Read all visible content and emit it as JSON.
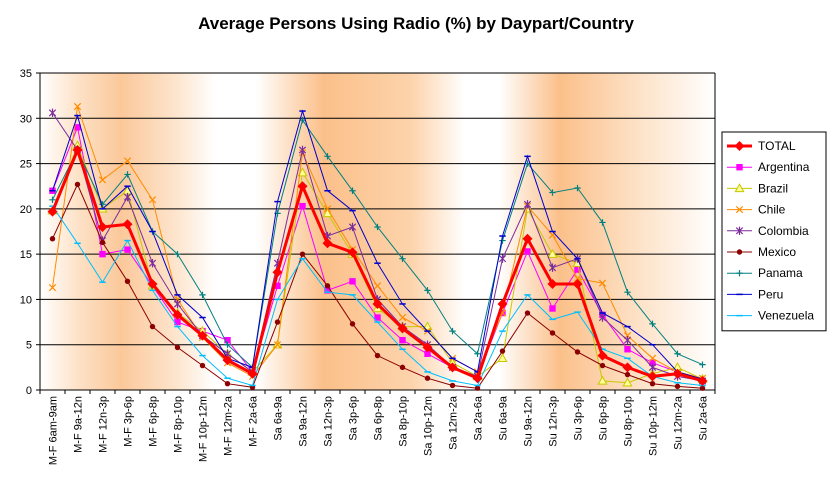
{
  "chart_data": {
    "type": "line",
    "title": "Average Persons Using Radio (%) by Daypart/Country",
    "xlabel": "",
    "ylabel": "",
    "ylim": [
      0,
      35
    ],
    "yticks": [
      0,
      5,
      10,
      15,
      20,
      25,
      30,
      35
    ],
    "grid": "horizontal",
    "legend_position": "right",
    "background": "vertical gradient: white at weekday dawn/night, orange at midday",
    "categories": [
      "M-F 6am-9am",
      "M-F 9a-12n",
      "M-F 12n-3p",
      "M-F 3p-6p",
      "M-F 6p-8p",
      "M-F 8p-10p",
      "M-F 10p-12m",
      "M-F 12m-2a",
      "M-F 2a-6a",
      "Sa 6a-9a",
      "Sa 9a-12n",
      "Sa 12n-3p",
      "Sa 3p-6p",
      "Sa 6p-8p",
      "Sa 8p-10p",
      "Sa 10p-12m",
      "Sa 12m-2a",
      "Sa 2a-6a",
      "Su 6a-9a",
      "Su 9a-12n",
      "Su 12n-3p",
      "Su 3p-6p",
      "Su 6p-8p",
      "Su 8p-10p",
      "Su 10p-12m",
      "Su 12m-2a",
      "Su 2a-6a"
    ],
    "series": [
      {
        "name": "Argentina",
        "color": "#ff00ff",
        "marker": "square",
        "values": [
          22,
          29,
          15,
          15.5,
          11.5,
          7.5,
          6.5,
          5.5,
          2,
          11.5,
          20.3,
          11,
          12,
          8,
          5.5,
          4,
          2.5,
          1.5,
          8.5,
          15.3,
          9,
          13.3,
          8.3,
          4.5,
          3,
          2,
          1
        ]
      },
      {
        "name": "Brazil",
        "color": "#c8c800",
        "marker": "triangle",
        "values": [
          19.8,
          27,
          20,
          22,
          11.5,
          8.5,
          6.5,
          4,
          2,
          5,
          24,
          19.5,
          15,
          9,
          7,
          7,
          3,
          1.5,
          3.5,
          20,
          15,
          14,
          1,
          0.8,
          1.8,
          2.5,
          1.2
        ]
      },
      {
        "name": "Chile",
        "color": "#ff8c00",
        "marker": "x",
        "values": [
          11.3,
          31.3,
          23.2,
          25.3,
          21,
          10,
          5.8,
          3,
          1.5,
          5,
          26.2,
          20,
          15.5,
          11.5,
          8,
          6.5,
          3.5,
          2,
          8.5,
          20.3,
          17.1,
          12.3,
          11.8,
          6,
          3.5,
          2,
          1.3
        ]
      },
      {
        "name": "Colombia",
        "color": "#7b2d9b",
        "marker": "star",
        "values": [
          30.6,
          26.5,
          16.5,
          21.3,
          14,
          9.5,
          6,
          4,
          2,
          14,
          26.5,
          17,
          18,
          10,
          7,
          5,
          2.5,
          1.5,
          14.5,
          20.5,
          13.5,
          14.5,
          8,
          5.5,
          2.5,
          1.5,
          1
        ]
      },
      {
        "name": "Mexico",
        "color": "#8b0000",
        "marker": "circle",
        "values": [
          16.7,
          22.7,
          16.3,
          12,
          7,
          4.7,
          2.7,
          0.7,
          0.3,
          7.5,
          15,
          11.5,
          7.3,
          3.8,
          2.5,
          1.3,
          0.5,
          0.2,
          4.3,
          8.5,
          6.3,
          4.2,
          2.7,
          1.7,
          0.7,
          0.4,
          0.2
        ]
      },
      {
        "name": "Panama",
        "color": "#008080",
        "marker": "plus",
        "values": [
          21,
          26.5,
          20.5,
          23.8,
          17.5,
          15,
          10.5,
          5,
          2.5,
          19.5,
          29.8,
          25.8,
          22,
          18,
          14.5,
          11,
          6.5,
          4,
          16.5,
          25,
          21.8,
          22.3,
          18.5,
          10.8,
          7.3,
          4,
          2.8
        ]
      },
      {
        "name": "Peru",
        "color": "#0000cd",
        "marker": "dash",
        "values": [
          22,
          30.3,
          20,
          22.5,
          17.5,
          10.5,
          8,
          3.5,
          2.5,
          20.8,
          30.8,
          22,
          19.8,
          14,
          9.5,
          6.5,
          3.5,
          2,
          17,
          25.8,
          17.5,
          14.5,
          8.5,
          7,
          5,
          2,
          1.2
        ]
      },
      {
        "name": "Venezuela",
        "color": "#00bfff",
        "marker": "dash",
        "values": [
          20.3,
          16.2,
          11.9,
          16.5,
          11,
          7,
          3.8,
          1.3,
          0.5,
          10,
          14.5,
          10.8,
          10.5,
          7.5,
          4.5,
          2,
          1,
          0.5,
          6.5,
          10.5,
          7.8,
          8.6,
          4.5,
          3.5,
          1.5,
          0.8,
          0.5
        ]
      },
      {
        "name": "TOTAL",
        "color": "#ff0000",
        "marker": "diamond",
        "emphasis": true,
        "values": [
          19.7,
          26.5,
          18,
          18.3,
          11.7,
          8.3,
          6,
          3.3,
          1.8,
          13,
          22.5,
          16.2,
          15.2,
          9.5,
          6.8,
          4.7,
          2.5,
          1.3,
          9.5,
          16.7,
          11.7,
          11.7,
          3.8,
          2.5,
          1.5,
          1.8,
          1
        ]
      }
    ],
    "legend_order": [
      "TOTAL",
      "Argentina",
      "Brazil",
      "Chile",
      "Colombia",
      "Mexico",
      "Panama",
      "Peru",
      "Venezuela"
    ]
  }
}
